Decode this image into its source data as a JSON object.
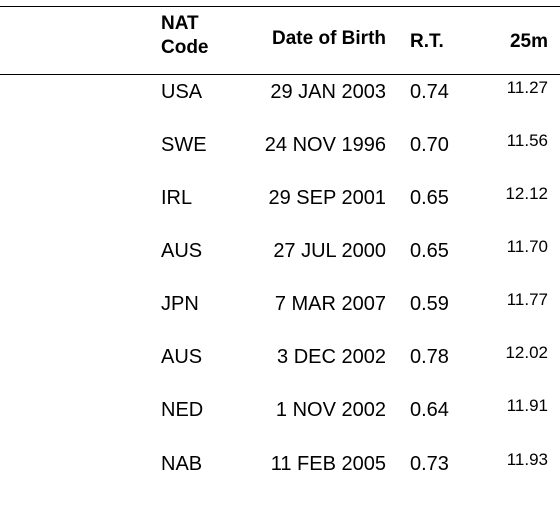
{
  "headers": {
    "nat_line1": "NAT",
    "nat_line2": "Code",
    "dob": "Date of Birth",
    "rt": "R.T.",
    "split": "25m"
  },
  "rows": [
    {
      "nat": "USA",
      "dob": "29 JAN 2003",
      "rt": "0.74",
      "time": "11.27"
    },
    {
      "nat": "SWE",
      "dob": "24 NOV 1996",
      "rt": "0.70",
      "time": "11.56"
    },
    {
      "nat": "IRL",
      "dob": "29 SEP 2001",
      "rt": "0.65",
      "time": "12.12"
    },
    {
      "nat": "AUS",
      "dob": "27 JUL 2000",
      "rt": "0.65",
      "time": "11.70"
    },
    {
      "nat": "JPN",
      "dob": "7 MAR 2007",
      "rt": "0.59",
      "time": "11.77"
    },
    {
      "nat": "AUS",
      "dob": "3 DEC 2002",
      "rt": "0.78",
      "time": "12.02"
    },
    {
      "nat": "NED",
      "dob": "1 NOV 2002",
      "rt": "0.64",
      "time": "11.91"
    },
    {
      "nat": "NAB",
      "dob": "11 FEB 2005",
      "rt": "0.73",
      "time": "11.93"
    }
  ]
}
